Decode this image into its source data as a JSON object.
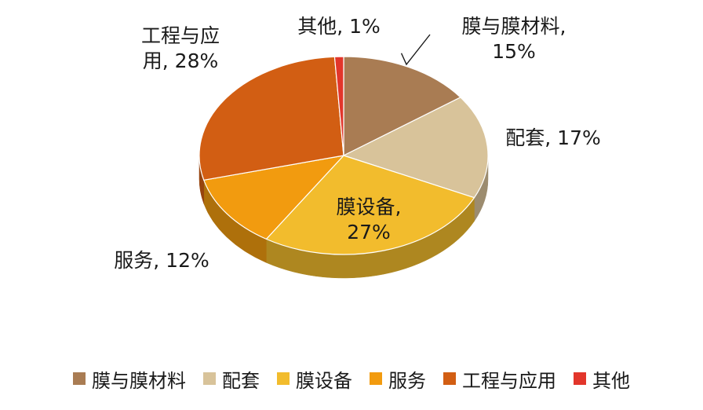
{
  "chart_data": {
    "type": "pie",
    "style": "3d",
    "title": "",
    "legend_position": "bottom",
    "slices": [
      {
        "name": "膜与膜材料",
        "value": 15,
        "color": "#A97C53",
        "label_lines": [
          "膜与膜材料,",
          "15%"
        ]
      },
      {
        "name": "配套",
        "value": 17,
        "color": "#D8C39A",
        "label_lines": [
          "配套, 17%"
        ]
      },
      {
        "name": "膜设备",
        "value": 27,
        "color": "#F2BC2D",
        "label_lines": [
          "膜设备,",
          "27%"
        ]
      },
      {
        "name": "服务",
        "value": 12,
        "color": "#F29B0F",
        "label_lines": [
          "服务, 12%"
        ]
      },
      {
        "name": "工程与应用",
        "value": 28,
        "color": "#D25E13",
        "label_lines": [
          "工程与应",
          "用, 28%"
        ]
      },
      {
        "name": "其他",
        "value": 1,
        "color": "#E2362B",
        "label_lines": [
          "其他, 1%"
        ]
      }
    ]
  }
}
